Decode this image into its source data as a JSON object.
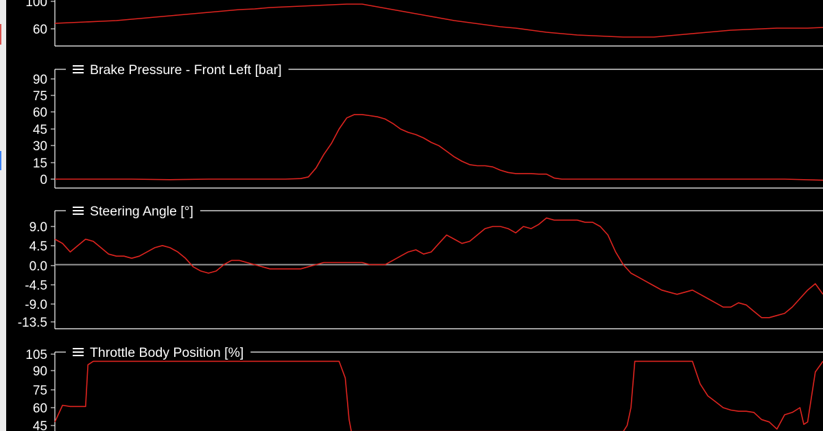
{
  "colors": {
    "background": "#000000",
    "trace": "#e0241f",
    "axis": "#ffffff",
    "zero_line": "#9a9a9a",
    "left_strip": "#ececec"
  },
  "menu_icon": "hamburger-menu-icon",
  "chart_data": [
    {
      "type": "line",
      "title": "",
      "yticks": [
        "100",
        "60"
      ],
      "ylim": [
        40,
        106
      ],
      "x": [
        0,
        2,
        4,
        6,
        8,
        10,
        12,
        14,
        16,
        18,
        20,
        22,
        24,
        26,
        28,
        30,
        32,
        34,
        36,
        38,
        40,
        42,
        44,
        46,
        48,
        50,
        52,
        54,
        56,
        58,
        60,
        62,
        64,
        66,
        68,
        70,
        72,
        74,
        76,
        78,
        80,
        82,
        84,
        86,
        88,
        90,
        92,
        94,
        96,
        98,
        100
      ],
      "values": [
        68,
        69,
        70,
        71,
        72,
        74,
        76,
        78,
        80,
        82,
        84,
        86,
        88,
        89,
        91,
        92,
        93,
        94,
        95,
        96,
        96,
        92,
        88,
        84,
        80,
        76,
        72,
        69,
        66,
        63,
        61,
        58,
        55,
        53,
        51,
        50,
        49,
        48,
        48,
        48,
        50,
        52,
        54,
        56,
        58,
        59,
        60,
        61,
        61,
        61,
        62
      ]
    },
    {
      "type": "line",
      "title": "Brake Pressure - Front Left [bar]",
      "yticks": [
        "90",
        "75",
        "60",
        "45",
        "30",
        "15",
        "0"
      ],
      "ylim": [
        -4,
        98
      ],
      "x": [
        0,
        5,
        10,
        15,
        20,
        25,
        30,
        32,
        33,
        34,
        35,
        36,
        37,
        38,
        39,
        40,
        41,
        42,
        43,
        44,
        45,
        46,
        47,
        48,
        49,
        50,
        51,
        52,
        53,
        54,
        55,
        56,
        57,
        58,
        59,
        60,
        61,
        62,
        63,
        64,
        65,
        66,
        67,
        68,
        69,
        70,
        75,
        80,
        85,
        90,
        95,
        100
      ],
      "values": [
        0,
        0,
        0,
        -0.5,
        0,
        0,
        0,
        0.5,
        2,
        10,
        22,
        32,
        45,
        55,
        58,
        58,
        57,
        56,
        54,
        50,
        45,
        42,
        40,
        37,
        33,
        30,
        25,
        20,
        16,
        13,
        12,
        12,
        11,
        8,
        6,
        5,
        5,
        5,
        4.5,
        4.5,
        1,
        0,
        0,
        0,
        0,
        0,
        0,
        0,
        0,
        0,
        0,
        -1
      ]
    },
    {
      "type": "line",
      "title": "Steering Angle [°]",
      "yticks": [
        "9.0",
        "4.5",
        "0.0",
        "-4.5",
        "-9.0",
        "-13.5"
      ],
      "ylim": [
        -15,
        13
      ],
      "zero_line": true,
      "x": [
        0,
        1,
        2,
        3,
        4,
        5,
        6,
        7,
        8,
        9,
        10,
        11,
        12,
        13,
        14,
        15,
        16,
        17,
        18,
        19,
        20,
        21,
        22,
        23,
        24,
        25,
        26,
        27,
        28,
        29,
        30,
        31,
        32,
        33,
        34,
        35,
        36,
        37,
        38,
        39,
        40,
        41,
        42,
        43,
        44,
        45,
        46,
        47,
        48,
        49,
        50,
        51,
        52,
        53,
        54,
        55,
        56,
        57,
        58,
        59,
        60,
        61,
        62,
        63,
        64,
        65,
        66,
        67,
        68,
        69,
        70,
        71,
        72,
        73,
        74,
        75,
        76,
        77,
        78,
        79,
        80,
        81,
        82,
        83,
        84,
        85,
        86,
        87,
        88,
        89,
        90,
        91,
        92,
        93,
        94,
        95,
        96,
        97,
        98,
        99,
        100
      ],
      "values": [
        6,
        5,
        3,
        4.5,
        6,
        5.5,
        4,
        2.5,
        2,
        2,
        1.5,
        2,
        3,
        4,
        4.5,
        4,
        3,
        1.5,
        -0.5,
        -1.5,
        -2,
        -1.5,
        0,
        1,
        1,
        0.5,
        0,
        -0.5,
        -1,
        -1,
        -1,
        -1,
        -1,
        -0.5,
        0,
        0.5,
        0.5,
        0.5,
        0.5,
        0.5,
        0.5,
        0,
        0,
        0,
        1,
        2,
        3,
        3.5,
        2.5,
        3,
        5,
        7,
        6,
        5,
        5.5,
        7,
        8.5,
        9,
        9,
        8.5,
        7.5,
        9,
        8.5,
        9.5,
        11,
        10.5,
        10.5,
        10.5,
        10.5,
        10,
        10,
        9,
        7,
        3,
        0,
        -2,
        -3,
        -4,
        -5,
        -6,
        -6.5,
        -7,
        -6.5,
        -6,
        -7,
        -8,
        -9,
        -10,
        -10,
        -9,
        -9.5,
        -11,
        -12.5,
        -12.5,
        -12,
        -11.5,
        -10,
        -8,
        -6,
        -4.5,
        -7
      ]
    },
    {
      "type": "line",
      "title": "Throttle Body Position [%]",
      "yticks": [
        "105",
        "90",
        "75",
        "60",
        "45"
      ],
      "ylim": [
        44,
        105
      ],
      "x": [
        0,
        0.5,
        1,
        2,
        3,
        4,
        4.3,
        5,
        6,
        10,
        15,
        20,
        25,
        30,
        35,
        37,
        37.8,
        38.3,
        38.6,
        50,
        60,
        70,
        74,
        74.5,
        75,
        75.5,
        76,
        78,
        80,
        81,
        82,
        83,
        84,
        85,
        86,
        87,
        88,
        89,
        90,
        91,
        92,
        93,
        94,
        95,
        96,
        97,
        97.5,
        98,
        99,
        100
      ],
      "values": [
        48,
        55,
        62,
        61,
        61,
        61,
        96,
        99,
        99,
        99,
        99,
        99,
        99,
        99,
        99,
        99,
        85,
        50,
        40,
        40,
        40,
        40,
        40,
        45,
        60,
        99,
        99,
        99,
        99,
        99,
        99,
        99,
        80,
        70,
        65,
        60,
        58,
        57,
        57,
        56,
        50,
        48,
        42,
        54,
        56,
        60,
        46,
        48,
        90,
        99
      ]
    }
  ]
}
